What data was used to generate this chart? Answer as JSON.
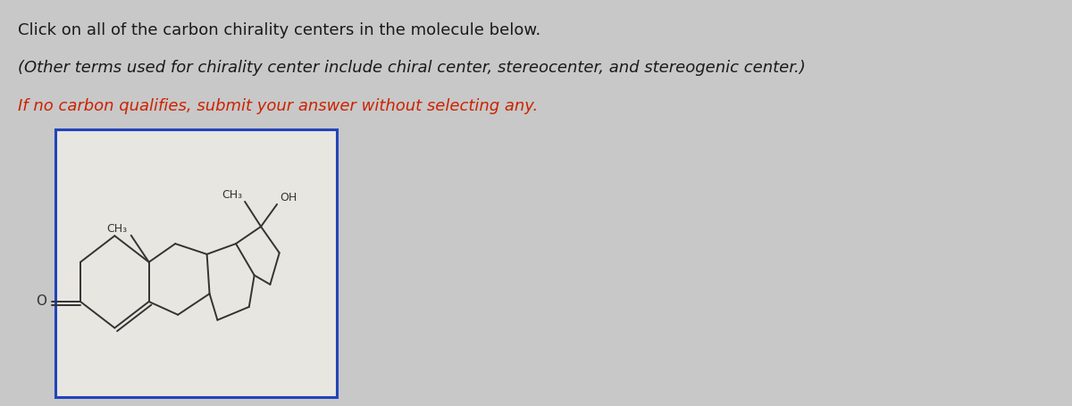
{
  "title_line1": "Click on all of the carbon chirality centers in the molecule below.",
  "title_line2": "(Other terms used for chirality center include chiral center, stereocenter, and stereogenic center.)",
  "title_line3": "If no carbon qualifies, submit your answer without selecting any.",
  "title_line3_color": "#cc2200",
  "bg_color": "#c8c8c8",
  "box_bg": "#e8e6e0",
  "box_border": "#2244bb",
  "text_color": "#1a1a1a",
  "font_size_line1": 13.0,
  "font_size_line2": 13.0,
  "font_size_line3": 13.0,
  "mol_color": "#333333",
  "mol_lw": 1.4
}
